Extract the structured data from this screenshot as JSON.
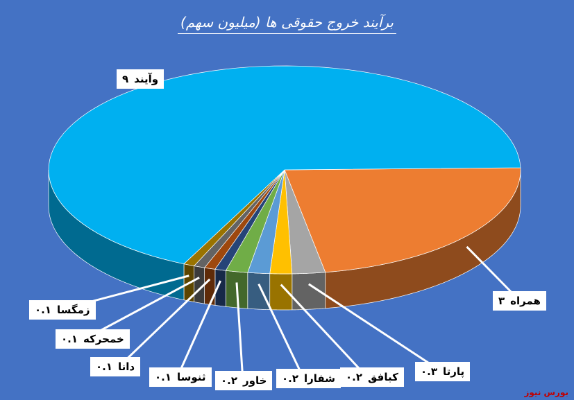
{
  "chart_data": {
    "type": "pie3d",
    "title": "برآیند خروج حقوقی ها (میلیون سهم)",
    "watermark": "بورس نیوز",
    "categories": [
      "همراه",
      "پارتا",
      "کبافق",
      "شفارا",
      "خاور",
      "ثنوسا",
      "دانا",
      "خمحرکه",
      "زمگسا",
      "وآیند"
    ],
    "values": [
      3,
      0.3,
      0.2,
      0.2,
      0.2,
      0.1,
      0.1,
      0.1,
      0.1,
      9
    ],
    "value_labels": [
      "۳",
      "۰.۳",
      "۰.۲",
      "۰.۲",
      "۰.۲",
      "۰.۱",
      "۰.۱",
      "۰.۱",
      "۰.۱",
      "۹"
    ],
    "colors": [
      "#ed7d31",
      "#a5a5a5",
      "#ffc000",
      "#5b9bd5",
      "#70ad47",
      "#264478",
      "#9e480e",
      "#636363",
      "#997300",
      "#00b0f0"
    ]
  }
}
